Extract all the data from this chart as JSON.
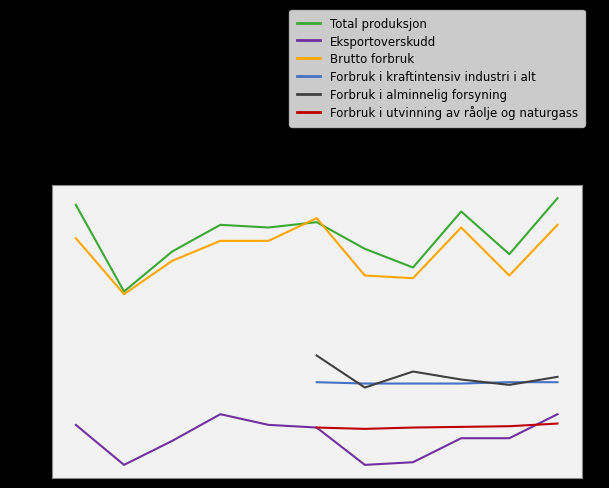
{
  "x": [
    1,
    2,
    3,
    4,
    5,
    6,
    7,
    8,
    9,
    10,
    11
  ],
  "total_produksjon": [
    20500,
    14000,
    17000,
    19000,
    18800,
    19200,
    17200,
    15800,
    20000,
    16800,
    21000
  ],
  "eksportoverskudd": [
    4000,
    1000,
    2800,
    4800,
    4000,
    3800,
    1000,
    1200,
    3000,
    3000,
    4800
  ],
  "brutto_forbruk": [
    18000,
    13800,
    16300,
    17800,
    17800,
    19500,
    15200,
    15000,
    18800,
    15200,
    19000
  ],
  "kraftintensiv": [
    null,
    null,
    null,
    null,
    null,
    7200,
    7100,
    7100,
    7100,
    7200,
    7200
  ],
  "alminnelig": [
    null,
    null,
    null,
    null,
    null,
    9200,
    6800,
    8000,
    7400,
    7000,
    7600
  ],
  "utvinning": [
    null,
    null,
    null,
    null,
    null,
    3800,
    3700,
    3800,
    3850,
    3900,
    4100
  ],
  "colors": {
    "total_produksjon": "#3aa832",
    "eksportoverskudd": "#7030a0",
    "brutto_forbruk": "#ffa500",
    "kraftintensiv": "#4472c4",
    "alminnelig": "#404040",
    "utvinning": "#c00000"
  },
  "legend_labels": [
    "Total produksjon",
    "Eksportoverskudd",
    "Brutto forbruk",
    "Forbruk i kraftintensiv industri i alt",
    "Forbruk i alminnelig forsyning",
    "Forbruk i utvinning av råolje og naturgass"
  ],
  "ylim": [
    0,
    22000
  ],
  "xlim": [
    0.5,
    11.5
  ],
  "outer_background": "#000000",
  "plot_background": "#f2f2f2",
  "legend_background": "#ffffff",
  "grid_color": "#ffffff"
}
